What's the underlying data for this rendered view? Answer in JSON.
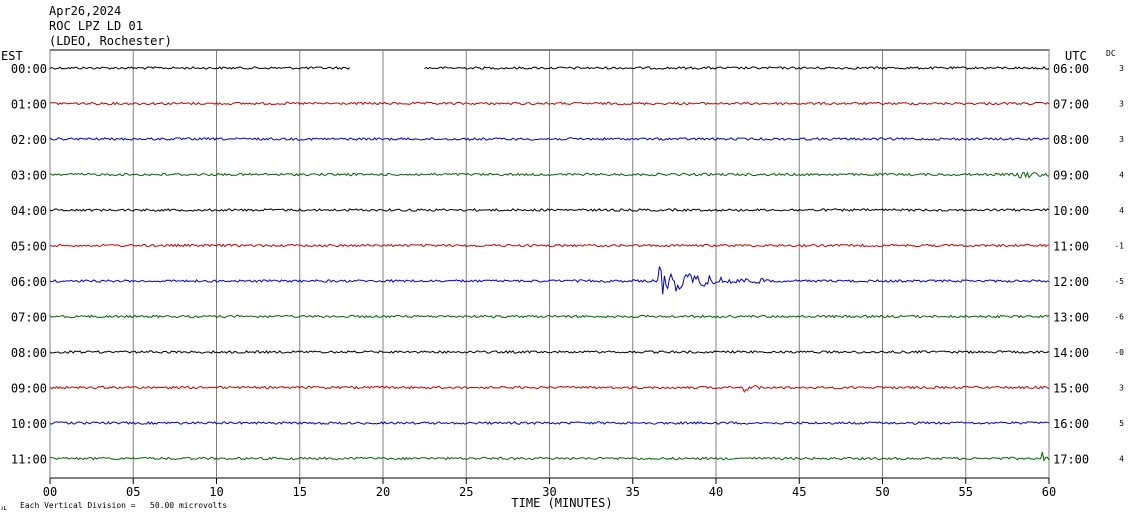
{
  "header": {
    "date": "Apr26,2024",
    "station": "ROC LPZ LD 01",
    "network": "(LDEO, Rochester)"
  },
  "left_axis_label": "EST",
  "right_axis_label": "UTC",
  "dc_label": "DC",
  "footer_note": "Each Vertical Division =   50.00 microvolts",
  "footer_mark": "ᴊʟ",
  "colors": {
    "trace_cycle": [
      "#000000",
      "#cc0000",
      "#0000cc",
      "#006600"
    ],
    "grid": "#808080"
  },
  "chart_data": {
    "type": "line",
    "subtype": "helicorder",
    "xlabel": "TIME (MINUTES)",
    "xlim": [
      0,
      60
    ],
    "xticks": [
      "00",
      "05",
      "10",
      "15",
      "20",
      "25",
      "30",
      "35",
      "40",
      "45",
      "50",
      "55",
      "60"
    ],
    "rows": [
      {
        "est": "00:00",
        "utc": "06:00",
        "dc": "3",
        "gaps": [
          [
            18,
            22.5
          ]
        ],
        "events": []
      },
      {
        "est": "01:00",
        "utc": "07:00",
        "dc": "3",
        "gaps": [],
        "events": []
      },
      {
        "est": "02:00",
        "utc": "08:00",
        "dc": "3",
        "gaps": [],
        "events": []
      },
      {
        "est": "03:00",
        "utc": "09:00",
        "dc": "4",
        "gaps": [],
        "events": [
          {
            "start": 58.2,
            "end": 60,
            "amp": 4.5
          }
        ]
      },
      {
        "est": "04:00",
        "utc": "10:00",
        "dc": "4",
        "gaps": [],
        "events": []
      },
      {
        "est": "05:00",
        "utc": "11:00",
        "dc": "-1",
        "gaps": [],
        "events": []
      },
      {
        "est": "06:00",
        "utc": "12:00",
        "dc": "-5",
        "gaps": [],
        "events": [
          {
            "start": 36.6,
            "end": 43.5,
            "amp": 14
          }
        ]
      },
      {
        "est": "07:00",
        "utc": "13:00",
        "dc": "-6",
        "gaps": [],
        "events": []
      },
      {
        "est": "08:00",
        "utc": "14:00",
        "dc": "-0",
        "gaps": [],
        "events": []
      },
      {
        "est": "09:00",
        "utc": "15:00",
        "dc": "3",
        "gaps": [],
        "events": [
          {
            "start": 41.6,
            "end": 42.8,
            "amp": 4
          }
        ]
      },
      {
        "est": "10:00",
        "utc": "16:00",
        "dc": "5",
        "gaps": [],
        "events": []
      },
      {
        "est": "11:00",
        "utc": "17:00",
        "dc": "4",
        "gaps": [],
        "events": [
          {
            "start": 59.6,
            "end": 60,
            "amp": 6
          }
        ]
      }
    ]
  }
}
